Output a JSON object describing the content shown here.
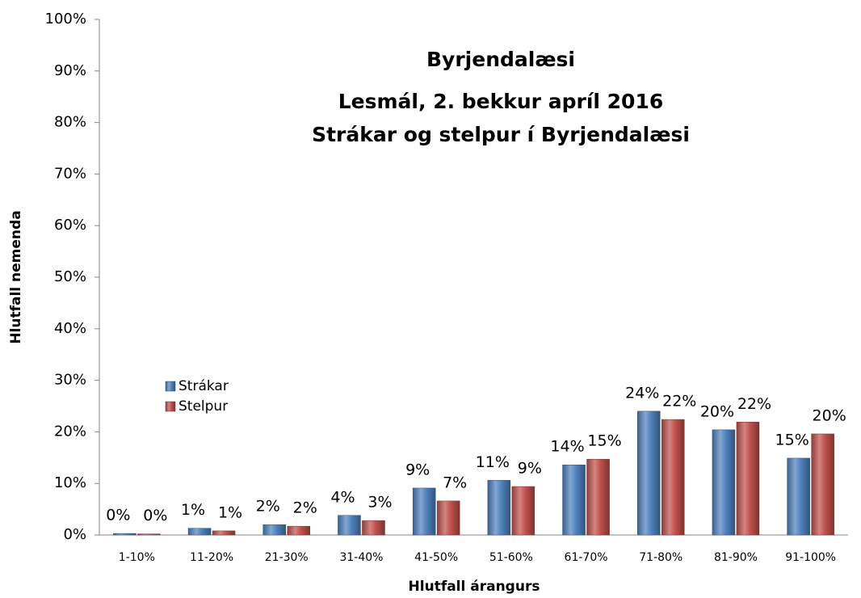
{
  "chart_data": {
    "type": "bar",
    "title": [
      "Byrjendalæsi",
      "Lesmál, 2. bekkur apríl 2016",
      "Strákar og stelpur í Byrjendalæsi"
    ],
    "x_label": "Hlutfall árangurs",
    "y_label": "Hlutfall nemenda",
    "categories": [
      "1-10%",
      "11-20%",
      "21-30%",
      "31-40%",
      "41-50%",
      "51-60%",
      "61-70%",
      "71-80%",
      "81-90%",
      "91-100%"
    ],
    "series": [
      {
        "name": "Strákar",
        "color": "#4f81bd",
        "values": [
          0.3,
          1.3,
          2.0,
          3.8,
          9.1,
          10.6,
          13.6,
          24.0,
          20.4,
          14.9
        ],
        "value_labels": [
          "0%",
          "1%",
          "2%",
          "4%",
          "9%",
          "11%",
          "14%",
          "24%",
          "20%",
          "15%"
        ]
      },
      {
        "name": "Stelpur",
        "color": "#c0504d",
        "values": [
          0.2,
          0.8,
          1.7,
          2.8,
          6.6,
          9.4,
          14.7,
          22.4,
          21.9,
          19.6
        ],
        "value_labels": [
          "0%",
          "1%",
          "2%",
          "3%",
          "7%",
          "9%",
          "15%",
          "22%",
          "22%",
          "20%"
        ]
      }
    ],
    "ylim": [
      0,
      100
    ],
    "yticks": [
      {
        "value": 0,
        "label": "0%"
      },
      {
        "value": 10,
        "label": "10%"
      },
      {
        "value": 20,
        "label": "20%"
      },
      {
        "value": 30,
        "label": "30%"
      },
      {
        "value": 40,
        "label": "40%"
      },
      {
        "value": 50,
        "label": "50%"
      },
      {
        "value": 60,
        "label": "60%"
      },
      {
        "value": 70,
        "label": "70%"
      },
      {
        "value": 80,
        "label": "80%"
      },
      {
        "value": 90,
        "label": "90%"
      },
      {
        "value": 100,
        "label": "100%"
      }
    ],
    "grid": false,
    "legend": "left"
  }
}
